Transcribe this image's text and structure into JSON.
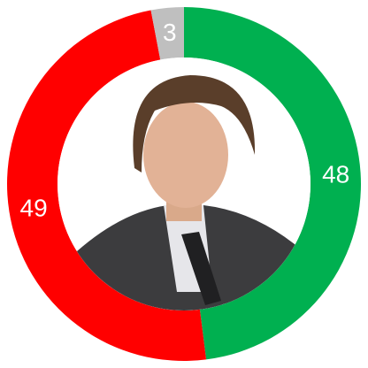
{
  "chart_data": {
    "type": "donut",
    "values": [
      48,
      49,
      3
    ],
    "colors": [
      "#00b050",
      "#ff0000",
      "#bfbfbf"
    ]
  }
}
